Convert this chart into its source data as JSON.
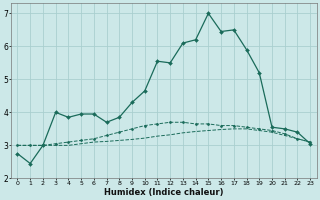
{
  "xlabel": "Humidex (Indice chaleur)",
  "bg_color": "#cce8e8",
  "grid_color": "#aacfcf",
  "line_color": "#1a6b5a",
  "xlim": [
    -0.5,
    23.5
  ],
  "ylim": [
    2.0,
    7.3
  ],
  "yticks": [
    2,
    3,
    4,
    5,
    6,
    7
  ],
  "xticks": [
    0,
    1,
    2,
    3,
    4,
    5,
    6,
    7,
    8,
    9,
    10,
    11,
    12,
    13,
    14,
    15,
    16,
    17,
    18,
    19,
    20,
    21,
    22,
    23
  ],
  "series1_x": [
    0,
    1,
    2,
    3,
    4,
    5,
    6,
    7,
    8,
    9,
    10,
    11,
    12,
    13,
    14,
    15,
    16,
    17,
    18,
    19,
    20,
    21,
    22,
    23
  ],
  "series1_y": [
    2.75,
    2.45,
    3.0,
    4.0,
    3.85,
    3.95,
    3.95,
    3.7,
    3.85,
    4.3,
    4.65,
    5.55,
    5.5,
    6.1,
    6.2,
    7.0,
    6.45,
    6.5,
    5.9,
    5.2,
    3.55,
    3.5,
    3.4,
    3.05
  ],
  "series2_x": [
    0,
    1,
    2,
    3,
    4,
    5,
    6,
    7,
    8,
    9,
    10,
    11,
    12,
    13,
    14,
    15,
    16,
    17,
    18,
    19,
    20,
    21,
    22,
    23
  ],
  "series2_y": [
    3.0,
    3.0,
    3.0,
    3.05,
    3.1,
    3.15,
    3.2,
    3.3,
    3.4,
    3.5,
    3.6,
    3.65,
    3.7,
    3.7,
    3.65,
    3.65,
    3.6,
    3.6,
    3.55,
    3.5,
    3.45,
    3.35,
    3.2,
    3.1
  ],
  "series3_x": [
    0,
    1,
    2,
    3,
    4,
    5,
    6,
    7,
    8,
    9,
    10,
    11,
    12,
    13,
    14,
    15,
    16,
    17,
    18,
    19,
    20,
    21,
    22,
    23
  ],
  "series3_y": [
    3.0,
    3.0,
    3.0,
    3.0,
    3.0,
    3.05,
    3.1,
    3.12,
    3.15,
    3.18,
    3.22,
    3.28,
    3.32,
    3.38,
    3.42,
    3.45,
    3.48,
    3.5,
    3.5,
    3.45,
    3.4,
    3.3,
    3.2,
    3.1
  ]
}
